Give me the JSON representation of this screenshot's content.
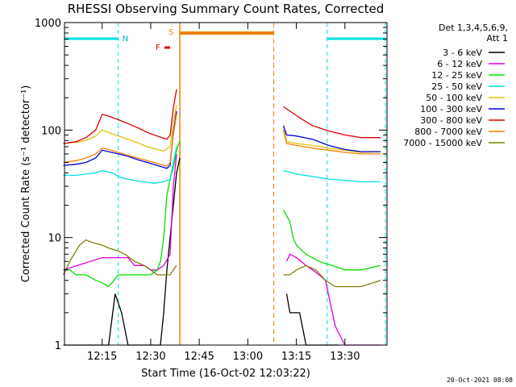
{
  "chart_data": {
    "type": "line",
    "title": "RHESSI Observing Summary Count Rates, Corrected",
    "xlabel": "Start Time (16-Oct-02 12:03:22)",
    "ylabel": "Corrected Count Rate (s⁻¹ detector⁻¹)",
    "y_scale": "log",
    "ylim": [
      1,
      1000
    ],
    "xlim": [
      "12:03:22",
      "13:43:00"
    ],
    "x_ticks": [
      "12:15",
      "12:30",
      "12:45",
      "13:00",
      "13:15",
      "13:30"
    ],
    "y_ticks": [
      "1",
      "10",
      "100",
      "1000"
    ],
    "legend_header": [
      "Det 1,3,4,5,6,9,",
      "Att 1"
    ],
    "legend_position": "right",
    "footer": "20-Oct-2021 08:08",
    "markers": {
      "night": [
        {
          "from": "12:03:22",
          "to": "12:20:00"
        },
        {
          "from": "13:24:30",
          "to": "13:42:30"
        }
      ],
      "n_label": "N",
      "flare_label": "F",
      "flare_time": "12:36:00",
      "saa_label": "S",
      "saa": {
        "from": "12:39:00",
        "to": "13:08:00"
      }
    },
    "series": [
      {
        "name": "3 - 6 keV",
        "color": "#000000",
        "x": [
          "12:03",
          "12:10",
          "12:17",
          "12:19",
          "12:21",
          "12:23",
          "12:25",
          "12:27",
          "12:29",
          "12:31",
          "12:33",
          "12:34",
          "12:35",
          "12:36",
          "12:37",
          "12:38",
          "12:39",
          "13:12",
          "13:13",
          "13:14",
          "13:16",
          "13:18",
          "13:20",
          "13:22",
          "13:24",
          "13:26",
          "13:28"
        ],
        "y": [
          1.0,
          1.0,
          1.0,
          3.0,
          2.0,
          1.0,
          1.0,
          1.0,
          1.0,
          1.0,
          1.0,
          2.0,
          5.0,
          10.0,
          20.0,
          40.0,
          55.0,
          3.0,
          2.0,
          2.0,
          2.0,
          1.0,
          1.0,
          1.0,
          1.0,
          1.0,
          1.0
        ]
      },
      {
        "name": "6 - 12 keV",
        "color": "#e000e0",
        "x": [
          "12:03",
          "12:15",
          "12:17",
          "12:20",
          "12:23",
          "12:25",
          "12:28",
          "12:30",
          "12:32",
          "12:34",
          "12:36",
          "12:37",
          "12:38",
          "13:12",
          "13:13",
          "13:15",
          "13:18",
          "13:20",
          "13:22",
          "13:24",
          "13:27",
          "13:30",
          "13:35",
          "13:41"
        ],
        "y": [
          5.0,
          6.5,
          6.5,
          6.5,
          6.5,
          5.5,
          5.5,
          5.0,
          5.0,
          5.5,
          7.0,
          30.0,
          60.0,
          6.0,
          7.0,
          6.5,
          5.5,
          5.0,
          4.5,
          4.0,
          1.5,
          1.0,
          1.0,
          1.0
        ]
      },
      {
        "name": "12 - 25 keV",
        "color": "#00e000",
        "x": [
          "12:03",
          "12:05",
          "12:07",
          "12:10",
          "12:13",
          "12:15",
          "12:17",
          "12:20",
          "12:22",
          "12:25",
          "12:28",
          "12:30",
          "12:32",
          "12:33",
          "12:34",
          "12:35",
          "12:36",
          "12:37",
          "12:38",
          "12:39",
          "13:11",
          "13:12",
          "13:13",
          "13:14",
          "13:15",
          "13:18",
          "13:22",
          "13:26",
          "13:30",
          "13:35",
          "13:41"
        ],
        "y": [
          5.0,
          5.0,
          4.5,
          4.5,
          4.0,
          3.8,
          3.5,
          4.5,
          4.5,
          4.5,
          4.5,
          4.5,
          5.0,
          6.0,
          10.0,
          25.0,
          35.0,
          45.0,
          65.0,
          80.0,
          18.0,
          16.0,
          14.0,
          10.0,
          8.5,
          7.0,
          6.0,
          5.5,
          5.0,
          5.0,
          5.5
        ]
      },
      {
        "name": "25 - 50 keV",
        "color": "#00e0e0",
        "x": [
          "12:03",
          "12:07",
          "12:10",
          "12:13",
          "12:15",
          "12:18",
          "12:21",
          "12:25",
          "12:28",
          "12:31",
          "12:34",
          "12:36",
          "12:37",
          "12:38",
          "13:11",
          "13:15",
          "13:20",
          "13:25",
          "13:30",
          "13:35",
          "13:41"
        ],
        "y": [
          38,
          38,
          39,
          40,
          42,
          40,
          36,
          34,
          33,
          32,
          33,
          35,
          50,
          70,
          42,
          39,
          37,
          35,
          34,
          33,
          33
        ]
      },
      {
        "name": "50 - 100 keV",
        "color": "#e0c000",
        "x": [
          "12:03",
          "12:07",
          "12:10",
          "12:13",
          "12:15",
          "12:17",
          "12:20",
          "12:23",
          "12:26",
          "12:29",
          "12:32",
          "12:34",
          "12:36",
          "12:37",
          "12:38",
          "13:11",
          "13:12",
          "13:15",
          "13:20",
          "13:25",
          "13:30",
          "13:35",
          "13:41"
        ],
        "y": [
          75,
          77,
          80,
          88,
          100,
          95,
          88,
          82,
          76,
          70,
          66,
          64,
          70,
          120,
          170,
          110,
          78,
          75,
          72,
          68,
          65,
          62,
          63
        ]
      },
      {
        "name": "100 - 300 keV",
        "color": "#0000e0",
        "x": [
          "12:03",
          "12:07",
          "12:10",
          "12:13",
          "12:15",
          "12:17",
          "12:20",
          "12:23",
          "12:26",
          "12:29",
          "12:32",
          "12:34",
          "12:35",
          "12:36",
          "12:37",
          "12:38",
          "13:11",
          "13:12",
          "13:15",
          "13:20",
          "13:25",
          "13:30",
          "13:35",
          "13:41"
        ],
        "y": [
          47,
          48,
          50,
          55,
          65,
          63,
          60,
          57,
          53,
          50,
          47,
          45,
          44,
          47,
          95,
          150,
          110,
          90,
          88,
          82,
          72,
          66,
          63,
          63
        ]
      },
      {
        "name": "300 - 800 keV",
        "color": "#e00000",
        "x": [
          "12:03",
          "12:07",
          "12:10",
          "12:13",
          "12:15",
          "12:17",
          "12:20",
          "12:23",
          "12:26",
          "12:29",
          "12:32",
          "12:34",
          "12:35",
          "12:36",
          "12:37",
          "12:38",
          "13:11",
          "13:13",
          "13:16",
          "13:20",
          "13:25",
          "13:30",
          "13:35",
          "13:41"
        ],
        "y": [
          75,
          78,
          85,
          100,
          140,
          135,
          125,
          115,
          105,
          95,
          88,
          84,
          82,
          90,
          160,
          240,
          165,
          150,
          130,
          110,
          98,
          90,
          85,
          85
        ]
      },
      {
        "name": "800 - 7000 keV",
        "color": "#f08000",
        "x": [
          "12:03",
          "12:07",
          "12:10",
          "12:13",
          "12:15",
          "12:17",
          "12:20",
          "12:23",
          "12:26",
          "12:29",
          "12:32",
          "12:34",
          "12:35",
          "12:36",
          "12:37",
          "12:38",
          "13:11",
          "13:12",
          "13:15",
          "13:20",
          "13:25",
          "13:30",
          "13:35",
          "13:41"
        ],
        "y": [
          50,
          52,
          55,
          60,
          68,
          66,
          62,
          58,
          55,
          52,
          49,
          47,
          46,
          50,
          90,
          140,
          100,
          75,
          72,
          68,
          65,
          62,
          60,
          60
        ]
      },
      {
        "name": "7000 - 15000 keV",
        "color": "#808000",
        "x": [
          "12:03",
          "12:05",
          "12:08",
          "12:10",
          "12:12",
          "12:15",
          "12:17",
          "12:20",
          "12:22",
          "12:25",
          "12:28",
          "12:30",
          "12:32",
          "12:34",
          "12:36",
          "12:37",
          "12:38",
          "13:11",
          "13:13",
          "13:15",
          "13:18",
          "13:21",
          "13:24",
          "13:27",
          "13:30",
          "13:35",
          "13:41"
        ],
        "y": [
          4.5,
          6.0,
          8.5,
          9.5,
          9.0,
          8.5,
          8.0,
          7.5,
          7.0,
          6.0,
          5.5,
          5.0,
          4.5,
          4.5,
          4.5,
          5.0,
          5.5,
          4.5,
          4.5,
          5.0,
          5.5,
          5.0,
          4.0,
          3.5,
          3.5,
          3.5,
          4.0
        ]
      }
    ]
  }
}
